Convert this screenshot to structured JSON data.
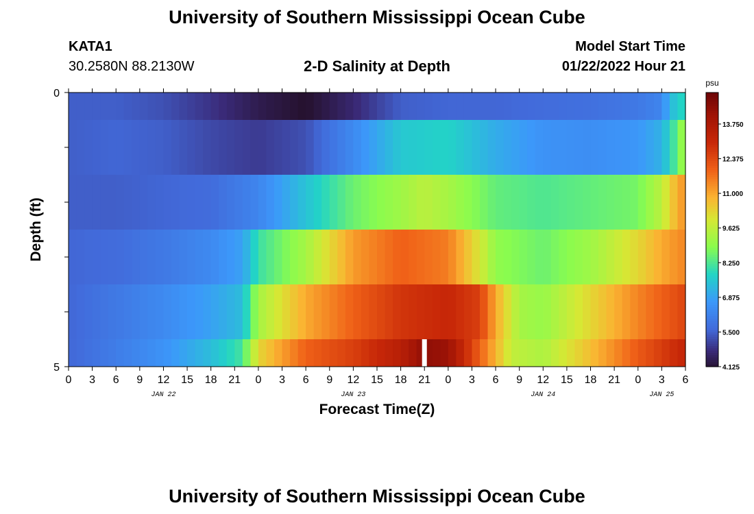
{
  "page": {
    "title": "University of Southern Mississippi Ocean Cube",
    "station_id": "KATA1",
    "station_coords": "30.2580N  88.2130W",
    "subtitle": "2-D Salinity at Depth",
    "model_start_label": "Model Start Time",
    "model_start_value": "01/22/2022 Hour 21",
    "footer_title": "University of Southern Mississippi Ocean Cube"
  },
  "chart_data": {
    "type": "heatmap",
    "title": "2-D Salinity at Depth",
    "xlabel": "Forecast Time(Z)",
    "ylabel": "Depth (ft)",
    "x_tick_labels": [
      "0",
      "3",
      "6",
      "9",
      "12",
      "15",
      "18",
      "21",
      "0",
      "3",
      "6",
      "9",
      "12",
      "15",
      "18",
      "21",
      "0",
      "3",
      "6",
      "9",
      "12",
      "15",
      "18",
      "21",
      "0",
      "3",
      "6"
    ],
    "x_date_labels": [
      {
        "label": "JAN 22",
        "hour": 12
      },
      {
        "label": "JAN 23",
        "hour": 36
      },
      {
        "label": "JAN 24",
        "hour": 60
      },
      {
        "label": "JAN 25",
        "hour": 75
      }
    ],
    "xlim_hours": [
      0,
      78
    ],
    "y_tick_labels": [
      "0",
      "5"
    ],
    "ylim": [
      0,
      5
    ],
    "colorbar": {
      "unit": "psu",
      "tick_labels": [
        "13.750",
        "12.375",
        "11.000",
        "9.625",
        "8.250",
        "6.875",
        "5.500",
        "4.125"
      ],
      "range": [
        4.125,
        15.0
      ]
    },
    "model_start_marker_hour": 45,
    "layers": [
      {
        "depth_range": [
          0,
          0.5
        ],
        "keys": [
          [
            0,
            5.5
          ],
          [
            6,
            5.5
          ],
          [
            12,
            5.3
          ],
          [
            18,
            4.9
          ],
          [
            24,
            4.4
          ],
          [
            30,
            4.1
          ],
          [
            36,
            4.7
          ],
          [
            42,
            5.5
          ],
          [
            48,
            5.6
          ],
          [
            54,
            5.6
          ],
          [
            60,
            5.7
          ],
          [
            66,
            5.8
          ],
          [
            72,
            6.0
          ],
          [
            75,
            6.3
          ],
          [
            76,
            7.3
          ],
          [
            78,
            8.0
          ]
        ]
      },
      {
        "depth_range": [
          0.5,
          1.5
        ],
        "keys": [
          [
            0,
            5.5
          ],
          [
            6,
            5.6
          ],
          [
            12,
            5.5
          ],
          [
            18,
            5.2
          ],
          [
            24,
            5.0
          ],
          [
            30,
            5.3
          ],
          [
            36,
            6.4
          ],
          [
            42,
            7.6
          ],
          [
            48,
            7.8
          ],
          [
            54,
            7.1
          ],
          [
            60,
            6.6
          ],
          [
            66,
            6.5
          ],
          [
            72,
            6.7
          ],
          [
            75,
            7.2
          ],
          [
            77,
            8.5
          ],
          [
            78,
            9.5
          ]
        ]
      },
      {
        "depth_range": [
          1.5,
          2.5
        ],
        "keys": [
          [
            0,
            5.5
          ],
          [
            6,
            5.5
          ],
          [
            12,
            5.6
          ],
          [
            18,
            5.7
          ],
          [
            24,
            6.3
          ],
          [
            30,
            7.5
          ],
          [
            36,
            8.6
          ],
          [
            42,
            9.2
          ],
          [
            45,
            9.6
          ],
          [
            48,
            9.3
          ],
          [
            54,
            8.5
          ],
          [
            60,
            8.3
          ],
          [
            66,
            8.5
          ],
          [
            72,
            8.7
          ],
          [
            75,
            9.6
          ],
          [
            77,
            11.0
          ],
          [
            78,
            11.3
          ]
        ]
      },
      {
        "depth_range": [
          2.5,
          3.5
        ],
        "keys": [
          [
            0,
            5.6
          ],
          [
            6,
            5.7
          ],
          [
            12,
            6.0
          ],
          [
            18,
            6.4
          ],
          [
            22,
            6.9
          ],
          [
            24,
            8.1
          ],
          [
            30,
            9.3
          ],
          [
            36,
            11.2
          ],
          [
            42,
            12.0
          ],
          [
            48,
            11.6
          ],
          [
            52,
            10.0
          ],
          [
            54,
            9.0
          ],
          [
            60,
            8.6
          ],
          [
            66,
            9.2
          ],
          [
            72,
            10.3
          ],
          [
            75,
            11.0
          ],
          [
            78,
            11.5
          ]
        ]
      },
      {
        "depth_range": [
          3.5,
          4.5
        ],
        "keys": [
          [
            0,
            5.6
          ],
          [
            6,
            6.0
          ],
          [
            12,
            6.4
          ],
          [
            18,
            6.9
          ],
          [
            22,
            7.4
          ],
          [
            24,
            9.3
          ],
          [
            30,
            11.0
          ],
          [
            36,
            12.0
          ],
          [
            42,
            12.8
          ],
          [
            48,
            13.1
          ],
          [
            52,
            12.6
          ],
          [
            54,
            11.0
          ],
          [
            57,
            9.3
          ],
          [
            60,
            9.1
          ],
          [
            66,
            10.3
          ],
          [
            72,
            11.5
          ],
          [
            78,
            12.5
          ]
        ]
      },
      {
        "depth_range": [
          4.5,
          5.0
        ],
        "keys": [
          [
            0,
            5.6
          ],
          [
            6,
            6.1
          ],
          [
            12,
            6.6
          ],
          [
            18,
            7.4
          ],
          [
            22,
            8.2
          ],
          [
            24,
            10.3
          ],
          [
            30,
            12.0
          ],
          [
            36,
            12.6
          ],
          [
            42,
            13.5
          ],
          [
            45,
            14.4
          ],
          [
            48,
            14.2
          ],
          [
            52,
            12.0
          ],
          [
            56,
            9.7
          ],
          [
            60,
            9.4
          ],
          [
            66,
            10.7
          ],
          [
            72,
            12.1
          ],
          [
            78,
            13.2
          ]
        ]
      }
    ]
  }
}
